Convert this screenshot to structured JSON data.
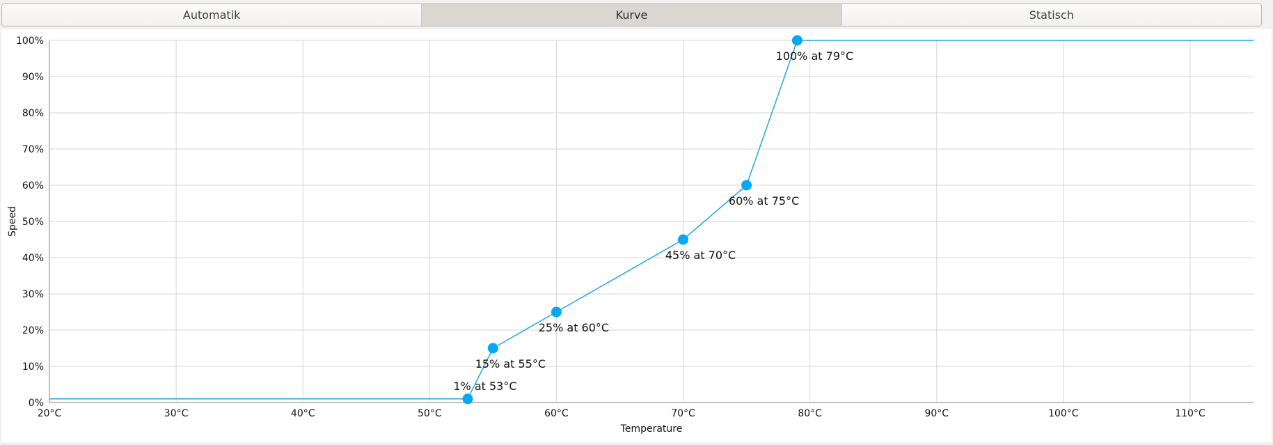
{
  "tabs": [
    {
      "label": "Automatik",
      "active": false
    },
    {
      "label": "Kurve",
      "active": true
    },
    {
      "label": "Statisch",
      "active": false
    }
  ],
  "chart_data": {
    "type": "line",
    "xlabel": "Temperature",
    "ylabel": "Speed",
    "xlim": [
      20,
      115
    ],
    "ylim": [
      0,
      100
    ],
    "x_ticks": [
      20,
      30,
      40,
      50,
      60,
      70,
      80,
      90,
      100,
      110
    ],
    "x_tick_labels": [
      "20°C",
      "30°C",
      "40°C",
      "50°C",
      "60°C",
      "70°C",
      "80°C",
      "90°C",
      "100°C",
      "110°C"
    ],
    "y_ticks": [
      0,
      10,
      20,
      30,
      40,
      50,
      60,
      70,
      80,
      90,
      100
    ],
    "y_tick_labels": [
      "0%",
      "10%",
      "20%",
      "30%",
      "40%",
      "50%",
      "60%",
      "70%",
      "80%",
      "90%",
      "100%"
    ],
    "grid": true,
    "line_color": "#1ea7e6",
    "point_color": "#03a9f4",
    "points": [
      {
        "x": 53,
        "y": 1,
        "label": "1% at 53°C"
      },
      {
        "x": 55,
        "y": 15,
        "label": "15% at 55°C"
      },
      {
        "x": 60,
        "y": 25,
        "label": "25% at 60°C"
      },
      {
        "x": 70,
        "y": 45,
        "label": "45% at 70°C"
      },
      {
        "x": 75,
        "y": 60,
        "label": "60% at 75°C"
      },
      {
        "x": 79,
        "y": 100,
        "label": "100% at 79°C"
      }
    ]
  }
}
